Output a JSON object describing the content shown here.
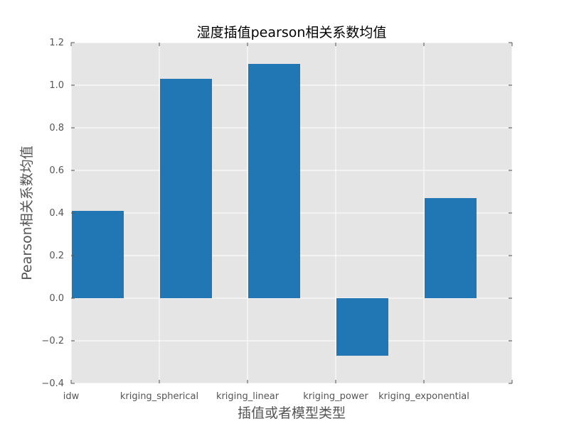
{
  "chart_data": {
    "type": "bar",
    "title": "湿度插值pearson相关系数均值",
    "xlabel": "插值或者模型类型",
    "ylabel": "Pearson相关系数均值",
    "categories": [
      "idw",
      "kriging_spherical",
      "kriging_linear",
      "kriging_power",
      "kriging_exponential"
    ],
    "values": [
      0.41,
      1.03,
      1.1,
      -0.27,
      0.47
    ],
    "ylim": [
      -0.4,
      1.2
    ],
    "yticks": [
      -0.4,
      -0.2,
      0.0,
      0.2,
      0.4,
      0.6,
      0.8,
      1.0,
      1.2
    ],
    "ytick_labels": [
      "−0.4",
      "−0.2",
      "0.0",
      "0.2",
      "0.4",
      "0.6",
      "0.8",
      "1.0",
      "1.2"
    ],
    "grid": true,
    "colors": {
      "bar": "#2077b4",
      "plot_background": "#e5e5e5",
      "grid": "#ffffff",
      "tick_text": "#555555"
    }
  }
}
